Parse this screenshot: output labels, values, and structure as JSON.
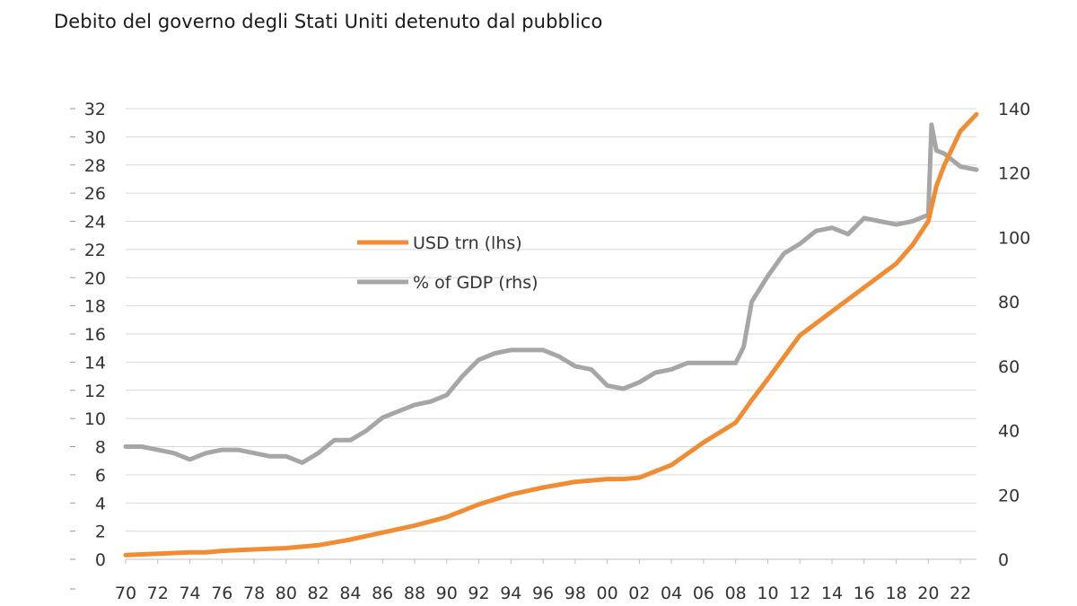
{
  "title": "Debito del governo degli Stati Uniti detenuto dal pubblico",
  "chart_data": {
    "type": "line",
    "x_tick_labels": [
      "70",
      "72",
      "74",
      "76",
      "78",
      "80",
      "82",
      "84",
      "86",
      "88",
      "90",
      "92",
      "94",
      "96",
      "98",
      "00",
      "02",
      "04",
      "06",
      "08",
      "10",
      "12",
      "14",
      "16",
      "18",
      "20",
      "22"
    ],
    "xlim": [
      1970,
      2023
    ],
    "y_left": {
      "ylim": [
        0,
        32
      ],
      "ticks": [
        0,
        2,
        4,
        6,
        8,
        10,
        12,
        14,
        16,
        18,
        20,
        22,
        24,
        26,
        28,
        30,
        32
      ]
    },
    "y_right": {
      "ylim": [
        0,
        140
      ],
      "ticks": [
        0,
        20,
        40,
        60,
        80,
        100,
        120,
        140
      ]
    },
    "legend": {
      "placement": "center-left"
    },
    "grid": true,
    "colors": {
      "usd": "#F28C33",
      "gdp": "#A6A6A6",
      "grid": "#D9D9D9"
    },
    "series": [
      {
        "name": "USD trn (lhs)",
        "axis": "left",
        "x": [
          1970,
          1972,
          1974,
          1975,
          1976,
          1978,
          1980,
          1982,
          1984,
          1986,
          1988,
          1990,
          1992,
          1994,
          1996,
          1998,
          2000,
          2001,
          2002,
          2004,
          2006,
          2008,
          2009,
          2010,
          2012,
          2014,
          2016,
          2018,
          2019,
          2020,
          2020.5,
          2021,
          2022,
          2023
        ],
        "values": [
          0.3,
          0.4,
          0.5,
          0.5,
          0.6,
          0.7,
          0.8,
          1.0,
          1.4,
          1.9,
          2.4,
          3.0,
          3.9,
          4.6,
          5.1,
          5.5,
          5.7,
          5.7,
          5.8,
          6.7,
          8.3,
          9.7,
          11.3,
          12.8,
          15.9,
          17.6,
          19.3,
          21.0,
          22.3,
          24.0,
          26.5,
          28.0,
          30.4,
          31.6
        ]
      },
      {
        "name": "% of GDP (rhs)",
        "axis": "right",
        "x": [
          1970,
          1971,
          1972,
          1973,
          1974,
          1975,
          1976,
          1977,
          1978,
          1979,
          1980,
          1981,
          1982,
          1983,
          1984,
          1985,
          1986,
          1987,
          1988,
          1989,
          1990,
          1991,
          1992,
          1993,
          1994,
          1995,
          1996,
          1997,
          1998,
          1999,
          2000,
          2001,
          2002,
          2003,
          2004,
          2005,
          2006,
          2007,
          2008,
          2008.5,
          2009,
          2010,
          2011,
          2012,
          2013,
          2014,
          2015,
          2016,
          2017,
          2018,
          2019,
          2020,
          2020.2,
          2020.5,
          2021,
          2022,
          2023
        ],
        "values": [
          35,
          35,
          34,
          33,
          31,
          33,
          34,
          34,
          33,
          32,
          32,
          30,
          33,
          37,
          37,
          40,
          44,
          46,
          48,
          49,
          51,
          57,
          62,
          64,
          65,
          65,
          65,
          63,
          60,
          59,
          54,
          53,
          55,
          58,
          59,
          61,
          61,
          61,
          61,
          66,
          80,
          88,
          95,
          98,
          102,
          103,
          101,
          106,
          105,
          104,
          105,
          107,
          135,
          127,
          126,
          122,
          121
        ]
      }
    ]
  }
}
